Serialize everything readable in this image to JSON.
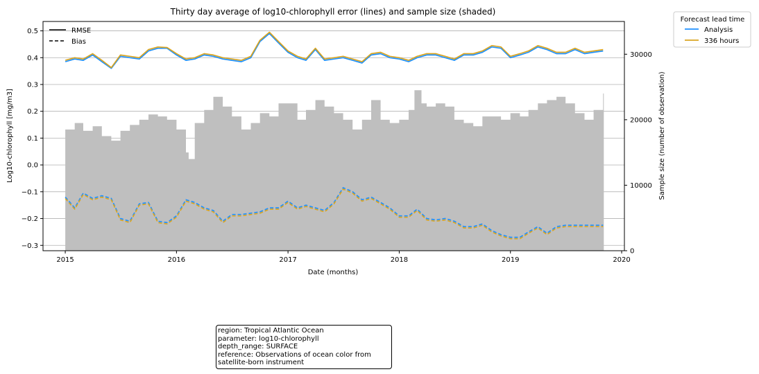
{
  "chart_data": {
    "type": "line",
    "title": "Thirty day average of log10-chlorophyll error (lines) and sample size (shaded)",
    "xlabel": "Date (months)",
    "ylabel": "Log10-chlorophyll [mg/m3]",
    "y2label": "Sample size (number of observation)",
    "x_range": [
      "2014-10-20",
      "2020-01-10"
    ],
    "ylim": [
      -0.32,
      0.535
    ],
    "y2lim": [
      0,
      35000
    ],
    "x_ticks": [
      "2015",
      "2016",
      "2017",
      "2018",
      "2019",
      "2020"
    ],
    "y_ticks": [
      "0.5",
      "0.4",
      "0.3",
      "0.2",
      "0.1",
      "0.0",
      "−0.1",
      "−0.2",
      "−0.3"
    ],
    "y2_ticks": [
      "30000",
      "20000",
      "10000",
      "0"
    ],
    "grid": "horizontal",
    "style_legend": {
      "position": "top-left",
      "entries": [
        "RMSE",
        "Bias"
      ]
    },
    "lead_legend": {
      "position": "outside-top-right",
      "title": "Forecast lead time",
      "entries": [
        "Analysis",
        "336 hours"
      ]
    },
    "colors": {
      "analysis": "#1e90ff",
      "h336": "#daa520",
      "sample": "#bfbfbf"
    },
    "sample_size": {
      "x": [
        "2015-01-01",
        "2015-02-01",
        "2015-03-01",
        "2015-04-01",
        "2015-05-01",
        "2015-06-01",
        "2015-07-01",
        "2015-08-01",
        "2015-09-01",
        "2015-10-01",
        "2015-11-01",
        "2015-12-01",
        "2016-01-01",
        "2016-02-01",
        "2016-02-10",
        "2016-03-01",
        "2016-04-01",
        "2016-05-01",
        "2016-06-01",
        "2016-07-01",
        "2016-08-01",
        "2016-09-01",
        "2016-10-01",
        "2016-11-01",
        "2016-12-01",
        "2017-01-01",
        "2017-02-01",
        "2017-03-01",
        "2017-04-01",
        "2017-05-01",
        "2017-06-01",
        "2017-07-01",
        "2017-08-01",
        "2017-09-01",
        "2017-10-01",
        "2017-11-01",
        "2017-12-01",
        "2018-01-01",
        "2018-02-01",
        "2018-02-20",
        "2018-03-15",
        "2018-04-01",
        "2018-05-01",
        "2018-06-01",
        "2018-07-01",
        "2018-08-01",
        "2018-09-01",
        "2018-10-01",
        "2018-11-01",
        "2018-12-01",
        "2019-01-01",
        "2019-02-01",
        "2019-03-01",
        "2019-04-01",
        "2019-05-01",
        "2019-06-01",
        "2019-07-01",
        "2019-08-01",
        "2019-09-01",
        "2019-10-01",
        "2019-11-01"
      ],
      "values": [
        18500,
        19500,
        18300,
        19000,
        17500,
        16800,
        18300,
        19200,
        20000,
        20800,
        20500,
        20000,
        18500,
        15000,
        14000,
        19500,
        21500,
        23500,
        22000,
        20500,
        18500,
        19500,
        21000,
        20500,
        22500,
        22500,
        20000,
        21500,
        23000,
        22000,
        21000,
        20000,
        18500,
        20000,
        23000,
        20000,
        19500,
        20000,
        21500,
        24500,
        22500,
        22000,
        22500,
        22000,
        20000,
        19500,
        19000,
        20500,
        20500,
        20000,
        21000,
        20500,
        21500,
        22500,
        23000,
        23500,
        22500,
        21000,
        20000,
        21500,
        24000
      ]
    },
    "series": [
      {
        "lead": "Analysis",
        "metric": "RMSE",
        "x": [
          "2015-01-01",
          "2015-02-01",
          "2015-03-01",
          "2015-04-01",
          "2015-05-01",
          "2015-06-01",
          "2015-07-01",
          "2015-08-01",
          "2015-09-01",
          "2015-10-01",
          "2015-11-01",
          "2015-12-01",
          "2016-01-01",
          "2016-02-01",
          "2016-03-01",
          "2016-04-01",
          "2016-05-01",
          "2016-06-01",
          "2016-07-01",
          "2016-08-01",
          "2016-09-01",
          "2016-10-01",
          "2016-11-01",
          "2016-12-01",
          "2017-01-01",
          "2017-02-01",
          "2017-03-01",
          "2017-04-01",
          "2017-05-01",
          "2017-06-01",
          "2017-07-01",
          "2017-08-01",
          "2017-09-01",
          "2017-10-01",
          "2017-11-01",
          "2017-12-01",
          "2018-01-01",
          "2018-02-01",
          "2018-03-01",
          "2018-04-01",
          "2018-05-01",
          "2018-06-01",
          "2018-07-01",
          "2018-08-01",
          "2018-09-01",
          "2018-10-01",
          "2018-11-01",
          "2018-12-01",
          "2019-01-01",
          "2019-02-01",
          "2019-03-01",
          "2019-04-01",
          "2019-05-01",
          "2019-06-01",
          "2019-07-01",
          "2019-08-01",
          "2019-09-01",
          "2019-10-01",
          "2019-11-01"
        ],
        "values": [
          0.385,
          0.395,
          0.39,
          0.41,
          0.385,
          0.36,
          0.405,
          0.4,
          0.395,
          0.425,
          0.435,
          0.435,
          0.41,
          0.39,
          0.395,
          0.41,
          0.405,
          0.395,
          0.39,
          0.385,
          0.4,
          0.46,
          0.49,
          0.455,
          0.42,
          0.4,
          0.39,
          0.43,
          0.39,
          0.395,
          0.4,
          0.39,
          0.38,
          0.41,
          0.415,
          0.4,
          0.395,
          0.385,
          0.4,
          0.41,
          0.41,
          0.4,
          0.39,
          0.41,
          0.41,
          0.42,
          0.44,
          0.435,
          0.4,
          0.41,
          0.42,
          0.44,
          0.43,
          0.415,
          0.415,
          0.43,
          0.415,
          0.42,
          0.425
        ]
      },
      {
        "lead": "336 hours",
        "metric": "RMSE",
        "x": [
          "2015-01-01",
          "2015-02-01",
          "2015-03-01",
          "2015-04-01",
          "2015-05-01",
          "2015-06-01",
          "2015-07-01",
          "2015-08-01",
          "2015-09-01",
          "2015-10-01",
          "2015-11-01",
          "2015-12-01",
          "2016-01-01",
          "2016-02-01",
          "2016-03-01",
          "2016-04-01",
          "2016-05-01",
          "2016-06-01",
          "2016-07-01",
          "2016-08-01",
          "2016-09-01",
          "2016-10-01",
          "2016-11-01",
          "2016-12-01",
          "2017-01-01",
          "2017-02-01",
          "2017-03-01",
          "2017-04-01",
          "2017-05-01",
          "2017-06-01",
          "2017-07-01",
          "2017-08-01",
          "2017-09-01",
          "2017-10-01",
          "2017-11-01",
          "2017-12-01",
          "2018-01-01",
          "2018-02-01",
          "2018-03-01",
          "2018-04-01",
          "2018-05-01",
          "2018-06-01",
          "2018-07-01",
          "2018-08-01",
          "2018-09-01",
          "2018-10-01",
          "2018-11-01",
          "2018-12-01",
          "2019-01-01",
          "2019-02-01",
          "2019-03-01",
          "2019-04-01",
          "2019-05-01",
          "2019-06-01",
          "2019-07-01",
          "2019-08-01",
          "2019-09-01",
          "2019-10-01",
          "2019-11-01"
        ],
        "values": [
          0.39,
          0.4,
          0.395,
          0.415,
          0.39,
          0.363,
          0.41,
          0.405,
          0.4,
          0.43,
          0.44,
          0.438,
          0.415,
          0.395,
          0.4,
          0.415,
          0.41,
          0.4,
          0.395,
          0.39,
          0.405,
          0.465,
          0.495,
          0.46,
          0.425,
          0.405,
          0.395,
          0.435,
          0.395,
          0.4,
          0.405,
          0.395,
          0.385,
          0.415,
          0.42,
          0.405,
          0.4,
          0.39,
          0.405,
          0.415,
          0.415,
          0.405,
          0.395,
          0.415,
          0.415,
          0.425,
          0.445,
          0.44,
          0.405,
          0.415,
          0.425,
          0.445,
          0.435,
          0.42,
          0.42,
          0.435,
          0.42,
          0.425,
          0.43
        ]
      },
      {
        "lead": "Analysis",
        "metric": "Bias",
        "x": [
          "2015-01-01",
          "2015-02-01",
          "2015-03-01",
          "2015-04-01",
          "2015-05-01",
          "2015-06-01",
          "2015-07-01",
          "2015-08-01",
          "2015-09-01",
          "2015-10-01",
          "2015-11-01",
          "2015-12-01",
          "2016-01-01",
          "2016-02-01",
          "2016-03-01",
          "2016-04-01",
          "2016-05-01",
          "2016-06-01",
          "2016-07-01",
          "2016-08-01",
          "2016-09-01",
          "2016-10-01",
          "2016-11-01",
          "2016-12-01",
          "2017-01-01",
          "2017-02-01",
          "2017-03-01",
          "2017-04-01",
          "2017-05-01",
          "2017-06-01",
          "2017-07-01",
          "2017-08-01",
          "2017-09-01",
          "2017-10-01",
          "2017-11-01",
          "2017-12-01",
          "2018-01-01",
          "2018-02-01",
          "2018-03-01",
          "2018-04-01",
          "2018-05-01",
          "2018-06-01",
          "2018-07-01",
          "2018-08-01",
          "2018-09-01",
          "2018-10-01",
          "2018-11-01",
          "2018-12-01",
          "2019-01-01",
          "2019-02-01",
          "2019-03-01",
          "2019-04-01",
          "2019-05-01",
          "2019-06-01",
          "2019-07-01",
          "2019-08-01",
          "2019-09-01",
          "2019-10-01",
          "2019-11-01"
        ],
        "values": [
          -0.12,
          -0.16,
          -0.105,
          -0.125,
          -0.115,
          -0.125,
          -0.2,
          -0.21,
          -0.145,
          -0.14,
          -0.21,
          -0.215,
          -0.19,
          -0.13,
          -0.14,
          -0.16,
          -0.17,
          -0.21,
          -0.185,
          -0.185,
          -0.18,
          -0.175,
          -0.16,
          -0.16,
          -0.135,
          -0.16,
          -0.15,
          -0.16,
          -0.17,
          -0.14,
          -0.085,
          -0.1,
          -0.13,
          -0.12,
          -0.14,
          -0.16,
          -0.19,
          -0.19,
          -0.165,
          -0.2,
          -0.205,
          -0.2,
          -0.21,
          -0.23,
          -0.23,
          -0.22,
          -0.245,
          -0.26,
          -0.27,
          -0.27,
          -0.25,
          -0.23,
          -0.255,
          -0.23,
          -0.225,
          -0.225,
          -0.225,
          -0.225,
          -0.225
        ]
      },
      {
        "lead": "336 hours",
        "metric": "Bias",
        "x": [
          "2015-01-01",
          "2015-02-01",
          "2015-03-01",
          "2015-04-01",
          "2015-05-01",
          "2015-06-01",
          "2015-07-01",
          "2015-08-01",
          "2015-09-01",
          "2015-10-01",
          "2015-11-01",
          "2015-12-01",
          "2016-01-01",
          "2016-02-01",
          "2016-03-01",
          "2016-04-01",
          "2016-05-01",
          "2016-06-01",
          "2016-07-01",
          "2016-08-01",
          "2016-09-01",
          "2016-10-01",
          "2016-11-01",
          "2016-12-01",
          "2017-01-01",
          "2017-02-01",
          "2017-03-01",
          "2017-04-01",
          "2017-05-01",
          "2017-06-01",
          "2017-07-01",
          "2017-08-01",
          "2017-09-01",
          "2017-10-01",
          "2017-11-01",
          "2017-12-01",
          "2018-01-01",
          "2018-02-01",
          "2018-03-01",
          "2018-04-01",
          "2018-05-01",
          "2018-06-01",
          "2018-07-01",
          "2018-08-01",
          "2018-09-01",
          "2018-10-01",
          "2018-11-01",
          "2018-12-01",
          "2019-01-01",
          "2019-02-01",
          "2019-03-01",
          "2019-04-01",
          "2019-05-01",
          "2019-06-01",
          "2019-07-01",
          "2019-08-01",
          "2019-09-01",
          "2019-10-01",
          "2019-11-01"
        ],
        "values": [
          -0.125,
          -0.165,
          -0.11,
          -0.13,
          -0.12,
          -0.13,
          -0.205,
          -0.215,
          -0.15,
          -0.145,
          -0.215,
          -0.22,
          -0.195,
          -0.135,
          -0.145,
          -0.165,
          -0.175,
          -0.215,
          -0.19,
          -0.19,
          -0.185,
          -0.18,
          -0.165,
          -0.165,
          -0.14,
          -0.165,
          -0.155,
          -0.165,
          -0.175,
          -0.145,
          -0.09,
          -0.105,
          -0.135,
          -0.125,
          -0.145,
          -0.165,
          -0.195,
          -0.195,
          -0.17,
          -0.205,
          -0.21,
          -0.205,
          -0.215,
          -0.235,
          -0.235,
          -0.225,
          -0.25,
          -0.265,
          -0.275,
          -0.275,
          -0.255,
          -0.235,
          -0.26,
          -0.235,
          -0.23,
          -0.23,
          -0.23,
          -0.23,
          -0.23
        ]
      }
    ]
  },
  "info_box": {
    "lines": [
      "region: Tropical Atlantic Ocean",
      "parameter: log10-chlorophyll",
      "depth_range: SURFACE",
      "reference: Observations of ocean color from satellite-born instrument"
    ]
  }
}
